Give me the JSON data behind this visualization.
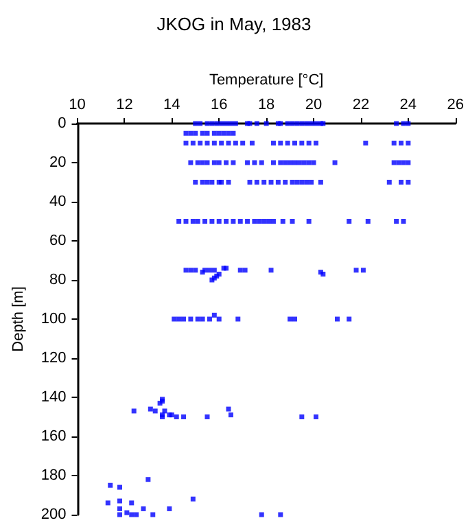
{
  "chart_data": {
    "type": "scatter",
    "title": "JKOG in May, 1983",
    "xlabel": "Temperature [°C]",
    "ylabel": "Depth [m]",
    "xlim": [
      10,
      26
    ],
    "xticks": [
      10,
      12,
      14,
      16,
      18,
      20,
      22,
      24,
      26
    ],
    "ylim": [
      200,
      0
    ],
    "yticks": [
      0,
      20,
      40,
      60,
      80,
      100,
      120,
      140,
      160,
      180,
      200
    ],
    "grid": false,
    "marker": "square",
    "series": [
      {
        "color": "#0000ff",
        "x": [
          15.0,
          15.2,
          15.5,
          15.7,
          15.9,
          16.1,
          16.3,
          16.5,
          16.7,
          17.2,
          17.3,
          17.6,
          18.0,
          18.5,
          18.6,
          18.9,
          19.1,
          19.3,
          19.5,
          19.7,
          19.9,
          20.1,
          20.3,
          20.4,
          23.5,
          23.8,
          24.0,
          14.6,
          14.8,
          15.0,
          15.3,
          15.5,
          15.8,
          16.0,
          16.2,
          16.4,
          16.6,
          14.6,
          14.9,
          15.2,
          15.5,
          15.8,
          16.1,
          16.4,
          16.7,
          17.0,
          17.4,
          18.3,
          18.6,
          18.9,
          19.2,
          19.5,
          19.8,
          20.1,
          22.2,
          23.4,
          23.7,
          24.0,
          14.8,
          15.1,
          15.3,
          15.5,
          15.8,
          16.0,
          16.3,
          16.6,
          17.2,
          17.5,
          17.8,
          18.3,
          18.6,
          18.8,
          19.0,
          19.2,
          19.4,
          19.6,
          19.8,
          20.0,
          20.9,
          23.4,
          23.6,
          23.8,
          24.0,
          15.0,
          15.3,
          15.5,
          15.7,
          16.0,
          16.1,
          16.4,
          17.3,
          17.6,
          17.9,
          18.2,
          18.5,
          18.8,
          19.1,
          19.3,
          19.5,
          19.7,
          19.9,
          20.3,
          23.2,
          23.7,
          24.0,
          14.3,
          14.6,
          14.9,
          15.1,
          15.4,
          15.7,
          16.0,
          16.3,
          16.6,
          16.9,
          17.2,
          17.5,
          17.7,
          17.9,
          18.1,
          18.3,
          18.7,
          19.1,
          19.8,
          21.5,
          22.3,
          23.5,
          23.8,
          14.6,
          14.8,
          15.0,
          15.3,
          15.4,
          15.6,
          15.8,
          16.0,
          15.9,
          15.8,
          15.7,
          16.2,
          16.3,
          16.9,
          17.1,
          18.2,
          20.3,
          20.4,
          21.8,
          22.1,
          14.1,
          14.3,
          14.5,
          14.8,
          15.1,
          15.3,
          15.6,
          15.8,
          16.0,
          16.8,
          19.0,
          19.2,
          21.0,
          21.5,
          12.4,
          13.1,
          13.3,
          13.5,
          13.6,
          13.6,
          13.6,
          13.6,
          13.7,
          13.9,
          14.0,
          14.2,
          14.5,
          15.5,
          16.4,
          16.5,
          19.5,
          20.1,
          13.0,
          11.4,
          11.8,
          11.8,
          11.3,
          12.3,
          14.9,
          11.8,
          12.1,
          12.3,
          12.8,
          13.9,
          11.8,
          12.5,
          13.2,
          17.8,
          18.6
        ],
        "values": [
          0,
          0,
          0,
          0,
          0,
          0,
          0,
          0,
          0,
          0,
          0,
          0,
          0,
          0,
          0,
          0,
          0,
          0,
          0,
          0,
          0,
          0,
          0,
          0,
          0,
          0,
          0,
          5,
          5,
          5,
          5,
          5,
          5,
          5,
          5,
          5,
          5,
          10,
          10,
          10,
          10,
          10,
          10,
          10,
          10,
          10,
          10,
          10,
          10,
          10,
          10,
          10,
          10,
          10,
          10,
          10,
          10,
          10,
          20,
          20,
          20,
          20,
          20,
          20,
          20,
          20,
          20,
          20,
          20,
          20,
          20,
          20,
          20,
          20,
          20,
          20,
          20,
          20,
          20,
          20,
          20,
          20,
          20,
          30,
          30,
          30,
          30,
          30,
          30,
          30,
          30,
          30,
          30,
          30,
          30,
          30,
          30,
          30,
          30,
          30,
          30,
          30,
          30,
          30,
          30,
          50,
          50,
          50,
          50,
          50,
          50,
          50,
          50,
          50,
          50,
          50,
          50,
          50,
          50,
          50,
          50,
          50,
          50,
          50,
          50,
          50,
          50,
          50,
          75,
          75,
          75,
          76,
          75,
          75,
          75,
          77,
          78,
          79,
          80,
          74,
          74,
          75,
          75,
          75,
          76,
          77,
          75,
          75,
          100,
          100,
          100,
          100,
          100,
          100,
          100,
          98,
          100,
          100,
          100,
          100,
          100,
          100,
          147,
          146,
          147,
          143,
          142,
          141,
          149,
          150,
          147,
          149,
          149,
          150,
          150,
          150,
          146,
          149,
          150,
          150,
          182,
          185,
          186,
          193,
          194,
          194,
          192,
          197,
          199,
          200,
          197,
          197,
          200,
          200,
          200,
          200,
          200
        ]
      }
    ]
  }
}
